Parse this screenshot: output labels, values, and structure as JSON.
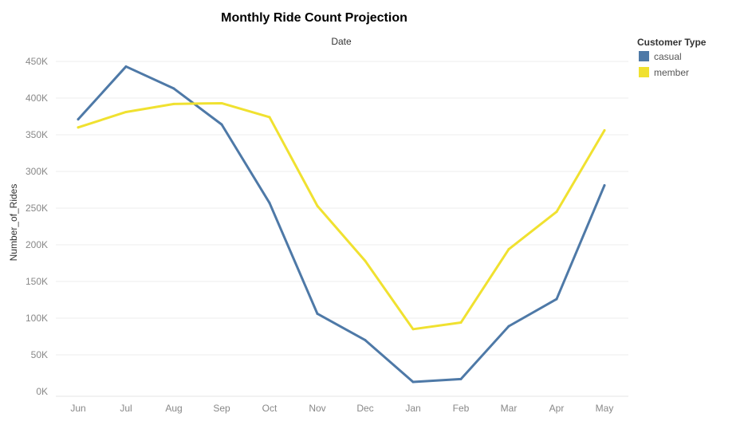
{
  "chart_data": {
    "type": "line",
    "title": "Monthly Ride Count Projection",
    "xlabel": "Date",
    "ylabel": "Number_of_Rides",
    "categories": [
      "Jun",
      "Jul",
      "Aug",
      "Sep",
      "Oct",
      "Nov",
      "Dec",
      "Jan",
      "Feb",
      "Mar",
      "Apr",
      "May"
    ],
    "ylim": [
      0,
      460000
    ],
    "yticks": [
      0,
      50000,
      100000,
      150000,
      200000,
      250000,
      300000,
      350000,
      400000,
      450000
    ],
    "ytick_labels": [
      "0K",
      "50K",
      "100K",
      "150K",
      "200K",
      "250K",
      "300K",
      "350K",
      "400K",
      "450K"
    ],
    "grid": true,
    "legend": {
      "title": "Customer Type",
      "placement": "top-right"
    },
    "series": [
      {
        "name": "casual",
        "color": "#4e79a7",
        "values": [
          371000,
          443000,
          413000,
          364000,
          257000,
          106000,
          70000,
          13000,
          17000,
          89000,
          126000,
          281000
        ]
      },
      {
        "name": "member",
        "color": "#f0e130",
        "values": [
          360000,
          381000,
          392000,
          393000,
          374000,
          253000,
          178000,
          85000,
          94000,
          194000,
          245000,
          356000
        ]
      }
    ]
  }
}
